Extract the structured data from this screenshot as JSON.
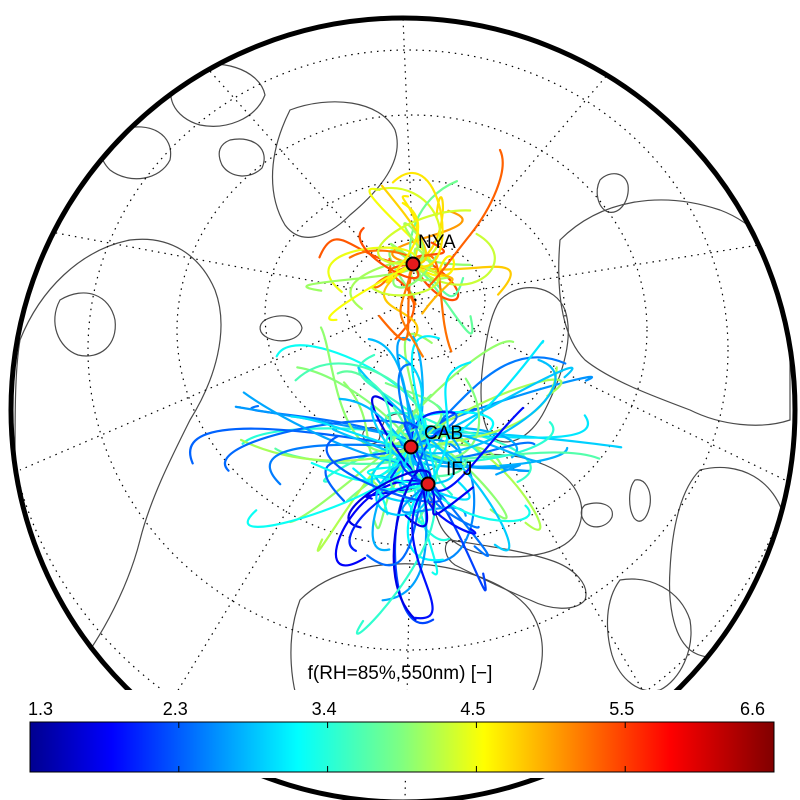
{
  "stations": [
    {
      "label": "NYA",
      "color": "#e41a1c"
    },
    {
      "label": "CAB",
      "color": "#e41a1c"
    },
    {
      "label": "IFJ",
      "color": "#e41a1c"
    }
  ],
  "colorbar": {
    "title": "f(RH=85%,550nm) [−]",
    "min": 1.3,
    "max": 6.6,
    "tick_labels": [
      "1.3",
      "2.3",
      "3.4",
      "4.5",
      "5.5",
      "6.6"
    ],
    "colormap": "jet"
  },
  "icons": {
    "station_marker": "red-circle-marker"
  }
}
